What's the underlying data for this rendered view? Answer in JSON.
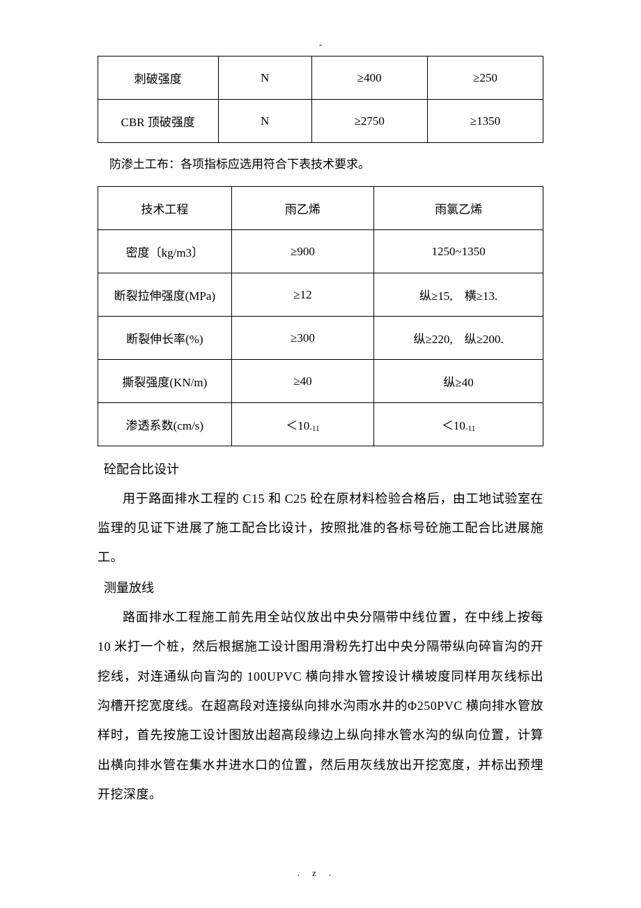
{
  "header_dash": "-",
  "table1": {
    "rows": [
      [
        "刺破强度",
        "N",
        "≥400",
        "≥250"
      ],
      [
        "CBR 顶破强度",
        "N",
        "≥2750",
        "≥1350"
      ]
    ]
  },
  "intertable_text": "防渗土工布：各项指标应选用符合下表技术要求。",
  "table2": {
    "rows": [
      [
        "技术工程",
        "雨乙烯",
        "雨氯乙烯"
      ],
      [
        "密度〔kg/m3〕",
        "≥900",
        "1250~1350"
      ],
      [
        "断裂拉伸强度(MPa)",
        "≥12",
        "纵≥15,　横≥13."
      ],
      [
        "断裂伸长率(%)",
        "≥300",
        "纵≥220,　纵≥200."
      ],
      [
        "撕裂强度(KN/m)",
        "≥40",
        "纵≥40"
      ],
      [
        "渗透系数(cm/s)",
        "＜10-11",
        "＜10-11"
      ]
    ]
  },
  "sections": {
    "h1": "砼配合比设计",
    "p1": "用于路面排水工程的 C15 和 C25 砼在原材料检验合格后，由工地试验室在监理的见证下进展了施工配合比设计，按照批准的各标号砼施工配合比进展施工。",
    "h2": "测量放线",
    "p2": "路面排水工程施工前先用全站仪放出中央分隔带中线位置，在中线上按每 10 米打一个桩，然后根据施工设计图用滑粉先打出中央分隔带纵向碎盲沟的开挖线，对连通纵向盲沟的 100UPVC 横向排水管按设计横坡度同样用灰线标出沟槽开挖宽度线。在超高段对连接纵向排水沟雨水井的Φ250PVC 横向排水管放样时，首先按施工设计图放出超高段缘边上纵向排水管水沟的纵向位置，计算出横向排水管在集水井进水口的位置，然后用灰线放出开挖宽度，并标出预埋开挖深度。"
  },
  "footer": ".z."
}
